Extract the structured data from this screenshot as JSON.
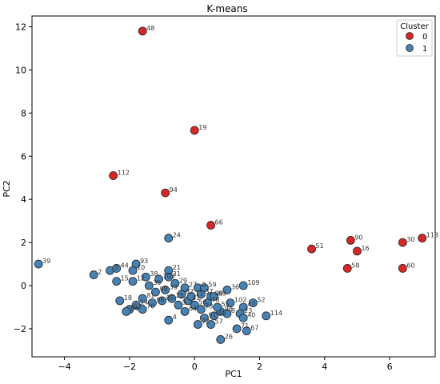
{
  "chart_data": {
    "type": "scatter",
    "title": "K-means",
    "xlabel": "PC1",
    "ylabel": "PC2",
    "xlim": [
      -5.0,
      7.4
    ],
    "ylim": [
      -3.3,
      12.5
    ],
    "xticks": [
      -4,
      -2,
      0,
      2,
      4,
      6
    ],
    "yticks": [
      -2,
      0,
      2,
      4,
      6,
      8,
      10,
      12
    ],
    "grid": false,
    "legend": {
      "title": "Cluster",
      "position": "top-right"
    },
    "colors": {
      "0": "#d62728",
      "1": "#4682b4"
    },
    "series": [
      {
        "name": "0",
        "points": [
          {
            "x": -1.6,
            "y": 11.8,
            "label": "48"
          },
          {
            "x": 0.0,
            "y": 7.2,
            "label": "19"
          },
          {
            "x": -2.5,
            "y": 5.1,
            "label": "112"
          },
          {
            "x": -0.9,
            "y": 4.3,
            "label": "94"
          },
          {
            "x": 0.5,
            "y": 2.8,
            "label": "66"
          },
          {
            "x": 3.6,
            "y": 1.7,
            "label": "51"
          },
          {
            "x": 4.8,
            "y": 2.1,
            "label": "90"
          },
          {
            "x": 5.0,
            "y": 1.6,
            "label": "16"
          },
          {
            "x": 4.7,
            "y": 0.8,
            "label": "58"
          },
          {
            "x": 6.4,
            "y": 2.0,
            "label": "30"
          },
          {
            "x": 7.0,
            "y": 2.2,
            "label": "118"
          },
          {
            "x": 6.4,
            "y": 0.8,
            "label": "60"
          }
        ]
      },
      {
        "name": "1",
        "points": [
          {
            "x": -4.8,
            "y": 1.0,
            "label": "39"
          },
          {
            "x": -3.1,
            "y": 0.5,
            "label": "2"
          },
          {
            "x": -2.6,
            "y": 0.7,
            "label": "3"
          },
          {
            "x": -2.4,
            "y": 0.8,
            "label": "44"
          },
          {
            "x": -1.8,
            "y": 1.0,
            "label": "93"
          },
          {
            "x": -1.9,
            "y": 0.7,
            "label": "10"
          },
          {
            "x": -2.4,
            "y": 0.2,
            "label": "15"
          },
          {
            "x": -1.9,
            "y": 0.2,
            "label": "12"
          },
          {
            "x": -1.5,
            "y": 0.4,
            "label": "38"
          },
          {
            "x": -1.1,
            "y": 0.3,
            "label": "103"
          },
          {
            "x": -0.8,
            "y": 0.7,
            "label": "21"
          },
          {
            "x": -0.8,
            "y": 0.4,
            "label": "31"
          },
          {
            "x": -0.6,
            "y": 0.1,
            "label": "29"
          },
          {
            "x": -0.3,
            "y": -0.1,
            "label": "27"
          },
          {
            "x": 0.1,
            "y": -0.1,
            "label": "0"
          },
          {
            "x": 0.3,
            "y": -0.1,
            "label": "59"
          },
          {
            "x": 0.5,
            "y": -0.5,
            "label": "86"
          },
          {
            "x": 0.6,
            "y": -0.5,
            "label": "89"
          },
          {
            "x": 1.0,
            "y": -0.2,
            "label": "36"
          },
          {
            "x": 1.5,
            "y": 0.0,
            "label": "109"
          },
          {
            "x": 1.1,
            "y": -0.8,
            "label": "102"
          },
          {
            "x": 1.5,
            "y": -1.0,
            "label": "47"
          },
          {
            "x": 1.8,
            "y": -0.8,
            "label": "52"
          },
          {
            "x": 1.4,
            "y": -1.3,
            "label": "23"
          },
          {
            "x": 1.5,
            "y": -1.5,
            "label": "40"
          },
          {
            "x": 2.2,
            "y": -1.4,
            "label": "114"
          },
          {
            "x": 1.3,
            "y": -2.0,
            "label": "71"
          },
          {
            "x": 1.6,
            "y": -2.1,
            "label": "67"
          },
          {
            "x": 0.8,
            "y": -2.5,
            "label": "26"
          },
          {
            "x": -0.8,
            "y": -1.6,
            "label": "4"
          },
          {
            "x": 0.1,
            "y": -1.8,
            "label": "72"
          },
          {
            "x": 0.5,
            "y": -1.8,
            "label": "57"
          },
          {
            "x": 0.3,
            "y": -1.5,
            "label": "91"
          },
          {
            "x": 0.6,
            "y": -1.4,
            "label": "45"
          },
          {
            "x": 0.8,
            "y": -1.2,
            "label": "98"
          },
          {
            "x": 1.0,
            "y": -1.3,
            "label": "8"
          },
          {
            "x": 0.2,
            "y": -1.1,
            "label": "73"
          },
          {
            "x": 0.0,
            "y": -0.9,
            "label": "56"
          },
          {
            "x": -0.2,
            "y": -0.7,
            "label": "41"
          },
          {
            "x": -0.4,
            "y": -0.4,
            "label": "82"
          },
          {
            "x": -0.7,
            "y": -0.6,
            "label": "25"
          },
          {
            "x": -1.0,
            "y": -0.7,
            "label": "85"
          },
          {
            "x": -1.3,
            "y": -0.8,
            "label": "96"
          },
          {
            "x": -1.6,
            "y": -0.6,
            "label": "81"
          },
          {
            "x": -1.8,
            "y": -0.9,
            "label": "14"
          },
          {
            "x": -2.0,
            "y": -1.1,
            "label": "62"
          },
          {
            "x": -2.3,
            "y": -0.7,
            "label": "18"
          },
          {
            "x": -2.1,
            "y": -1.2,
            "label": "84"
          },
          {
            "x": -1.6,
            "y": -1.1,
            "label": "70"
          },
          {
            "x": -1.2,
            "y": -0.3,
            "label": "99"
          },
          {
            "x": -0.9,
            "y": -0.2,
            "label": "33"
          },
          {
            "x": -0.5,
            "y": -0.9,
            "label": "5"
          },
          {
            "x": -0.3,
            "y": -1.2,
            "label": "64"
          },
          {
            "x": 0.4,
            "y": -0.8,
            "label": "78"
          },
          {
            "x": 0.7,
            "y": -1.0,
            "label": "55"
          },
          {
            "x": -1.4,
            "y": 0.0,
            "label": "35"
          },
          {
            "x": -0.1,
            "y": -0.5,
            "label": "11"
          },
          {
            "x": 0.2,
            "y": -0.4,
            "label": "37"
          },
          {
            "x": -0.8,
            "y": 2.2,
            "label": "24"
          }
        ]
      }
    ]
  }
}
